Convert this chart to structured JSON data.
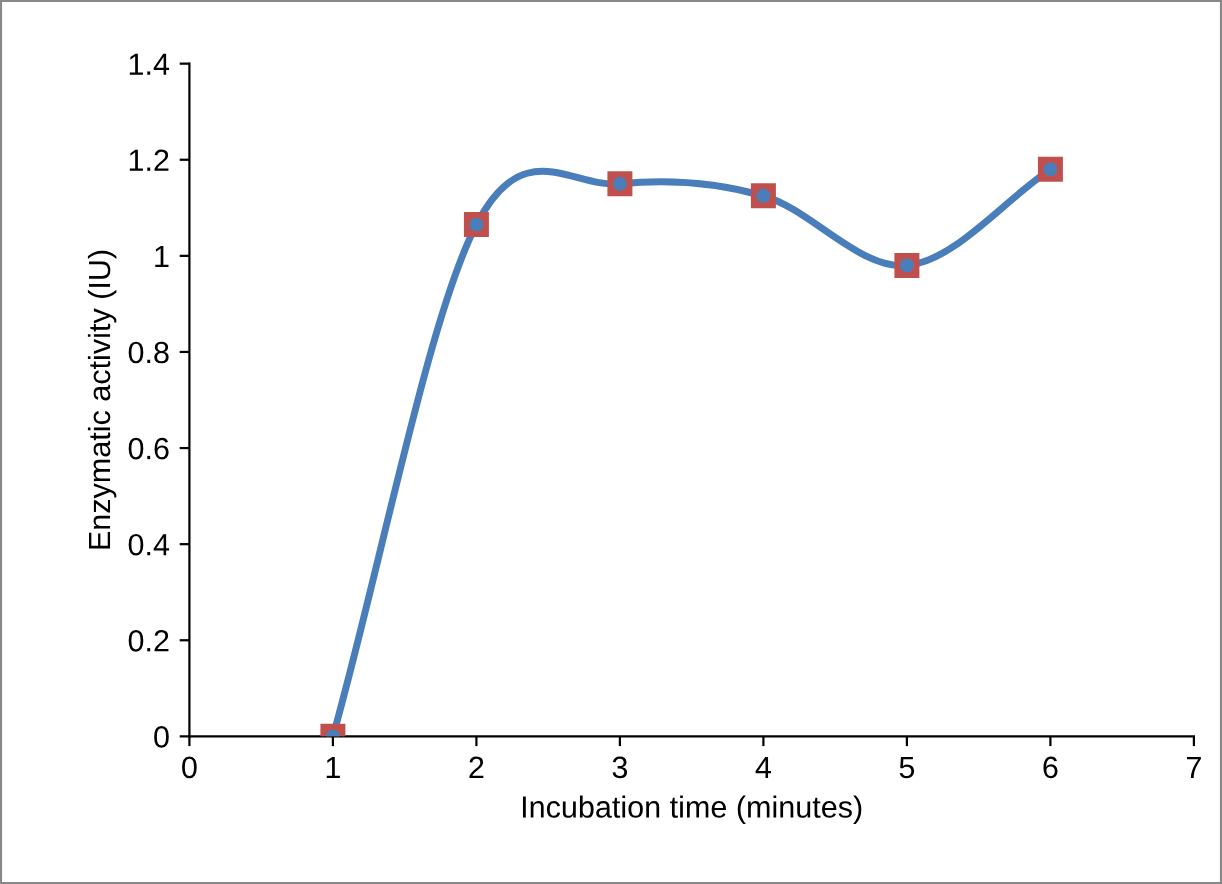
{
  "chart_data": {
    "type": "line",
    "xlabel": "Incubation time (minutes)",
    "ylabel": "Enzymatic activity (IU)",
    "x": [
      1,
      2,
      3,
      4,
      5,
      6
    ],
    "series": [
      {
        "color": "#4a7ebb",
        "colors": [
          "#c0504d",
          "#c0504d",
          "#c0504d",
          "#c0504d",
          "#c0504d",
          "#c0504d"
        ],
        "values": [
          0,
          1.065,
          1.15,
          1.125,
          0.98,
          1.18
        ]
      }
    ],
    "xlim": [
      0,
      7
    ],
    "xticks": [
      0,
      1,
      2,
      3,
      4,
      5,
      6,
      7
    ],
    "ylim": [
      0,
      1.4
    ],
    "yticks": [
      0,
      0.2,
      0.4,
      0.6,
      0.8,
      1,
      1.2,
      1.4
    ],
    "grid": false,
    "legend": false,
    "marker": "square",
    "line_style": "solid"
  }
}
